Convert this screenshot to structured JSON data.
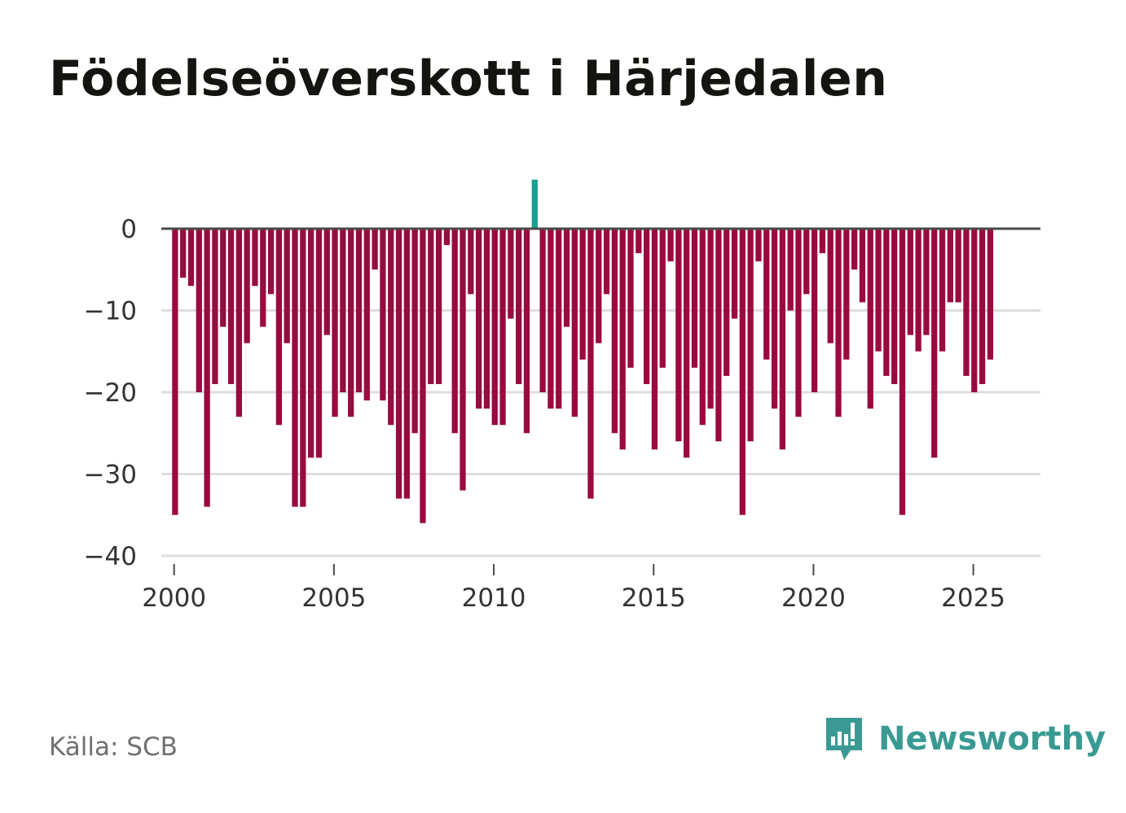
{
  "header": {
    "title": "Födelseöverskott i Härjedalen"
  },
  "footer": {
    "source": "Källa: SCB",
    "brand": "Newsworthy"
  },
  "colors": {
    "negative": "#990a3f",
    "positive": "#1a9e96",
    "gridline": "#dddddd",
    "zero_line": "#4a4a4a",
    "tick_text": "#333333",
    "brand": "#3a9a93"
  },
  "chart_data": {
    "type": "bar",
    "title": "Födelseöverskott i Härjedalen",
    "xlabel": "",
    "ylabel": "",
    "ylim": [
      -40,
      6
    ],
    "xlim": [
      1999.6,
      2027.1
    ],
    "grid": true,
    "y_ticks": [
      0,
      -10,
      -20,
      -30,
      -40
    ],
    "y_tick_labels": [
      "0",
      "−10",
      "−20",
      "−30",
      "−40"
    ],
    "x_ticks": [
      2000,
      2005,
      2010,
      2015,
      2020,
      2025
    ],
    "x_tick_labels": [
      "2000",
      "2005",
      "2010",
      "2015",
      "2020",
      "2025"
    ],
    "frequency": "quarterly",
    "start_period": 2000.0,
    "period_step": 0.25,
    "values": [
      -35,
      -6,
      -7,
      -20,
      -34,
      -19,
      -12,
      -19,
      -23,
      -14,
      -7,
      -12,
      -8,
      -24,
      -14,
      -34,
      -34,
      -28,
      -28,
      -13,
      -23,
      -20,
      -23,
      -20,
      -21,
      -5,
      -21,
      -24,
      -33,
      -33,
      -25,
      -36,
      -19,
      -19,
      -2,
      -25,
      -32,
      -8,
      -22,
      -22,
      -24,
      -24,
      -11,
      -19,
      -25,
      6,
      -20,
      -22,
      -22,
      -12,
      -23,
      -16,
      -33,
      -14,
      -8,
      -25,
      -27,
      -17,
      -3,
      -19,
      -27,
      -17,
      -4,
      -26,
      -28,
      -17,
      -24,
      -22,
      -26,
      -18,
      -11,
      -35,
      -26,
      -4,
      -16,
      -22,
      -27,
      -10,
      -23,
      -8,
      -20,
      -3,
      -14,
      -23,
      -16,
      -5,
      -9,
      -22,
      -15,
      -18,
      -19,
      -35,
      -13,
      -15,
      -13,
      -28,
      -15,
      -9,
      -9,
      -18,
      -20,
      -19,
      -16
    ]
  }
}
